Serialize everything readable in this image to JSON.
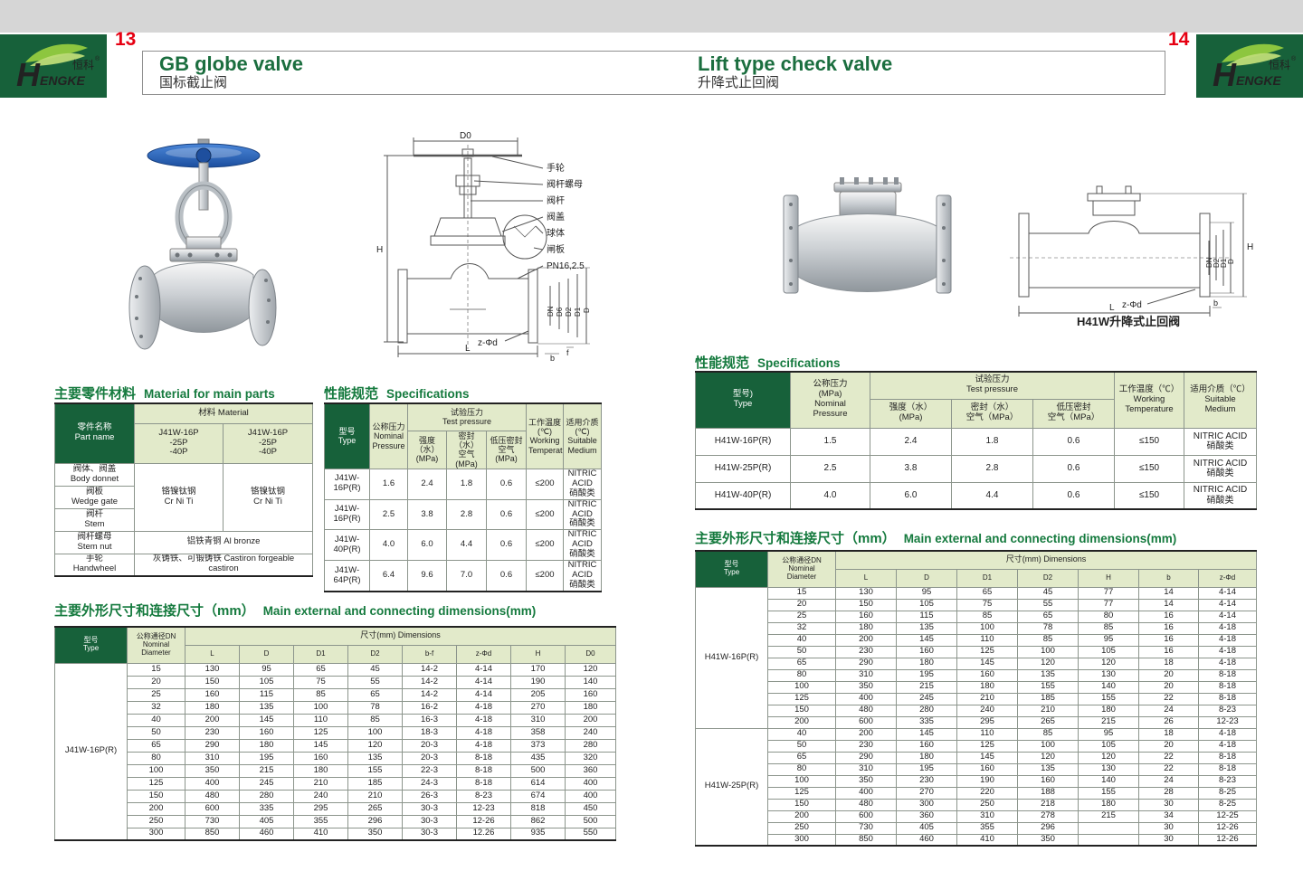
{
  "colors": {
    "brand_green": "#17613A",
    "cell_green": "#E2EACA",
    "accent_red": "#E60012",
    "title_green": "#157A3E",
    "band_gray": "#D6D6D6"
  },
  "header": {
    "page_left_num": "13",
    "page_right_num": "14",
    "left_title_en": "GB globe valve",
    "left_title_zh": "国标截止阀",
    "right_title_en": "Lift type check valve",
    "right_title_zh": "升降式止回阀",
    "logo": {
      "h": "H",
      "rest": "ENGKE",
      "zh": "恒科",
      "reg": "®"
    }
  },
  "left_page": {
    "material_section": {
      "title_zh": "主要零件材料",
      "title_en": "Material for main parts",
      "part_name": "零件名称\nPart name",
      "material_header": "材料 Material",
      "model_col": "J41W-16P\n-25P\n-40P",
      "rows": [
        {
          "label": "阀体、阀盖\nBody donnet"
        },
        {
          "label": "阀板\nWedge gate"
        },
        {
          "label": "阀杆\nStem"
        },
        {
          "label": "阀杆螺母\nStem nut"
        },
        {
          "label": "手轮\nHandwheel"
        }
      ],
      "mat_crniti": "铬镍钛钢\nCr Ni Ti",
      "mat_bronze": "铝铁青铜 Al bronze",
      "mat_castiron": "灰铸铁、可锻铸铁 Castiron forgeable castiron"
    },
    "spec_section": {
      "title_zh": "性能规范",
      "title_en": "Specifications",
      "h_type": "型号\nType",
      "h_nominal": "公称压力\nNominal\nPressure",
      "h_test": "试验压力\nTest pressure",
      "h_strength": "强度（水）\n(MPa)",
      "h_seal": "密封（水）\n空气 (MPa)",
      "h_lowseal": "低压密封\n空气 (MPa)",
      "h_working": "工作温度\n(℃)\nWorking\nTemperature",
      "h_medium": "适用介质\n(℃)\nSuitable\nMedium",
      "rows": [
        [
          "J41W-16P(R)",
          "1.6",
          "2.4",
          "1.8",
          "0.6",
          "≤200",
          "NITRIC ACID\n硝酸类"
        ],
        [
          "J41W-16P(R)",
          "2.5",
          "3.8",
          "2.8",
          "0.6",
          "≤200",
          "NITRIC ACID\n硝酸类"
        ],
        [
          "J41W-40P(R)",
          "4.0",
          "6.0",
          "4.4",
          "0.6",
          "≤200",
          "NITRIC ACID\n硝酸类"
        ],
        [
          "J41W-64P(R)",
          "6.4",
          "9.6",
          "7.0",
          "0.6",
          "≤200",
          "NITRIC ACID\n硝酸类"
        ]
      ]
    },
    "dims_section": {
      "title_zh": "主要外形尺寸和连接尺寸（mm）",
      "title_en": "Main external and connecting dimensions(mm)",
      "h_type": "型号\nType",
      "h_dn": "公称通径DN\nNominal\nDiameter",
      "h_dims": "尺寸(mm) Dimensions",
      "cols": [
        "L",
        "D",
        "D1",
        "D2",
        "b-f",
        "z-Φd",
        "H",
        "D0"
      ],
      "rows": [
        [
          {
            "text": "J41W-16P(R)",
            "rowspan": 14
          },
          "15",
          "130",
          "95",
          "65",
          "45",
          "14-2",
          "4-14",
          "170",
          "120"
        ],
        [
          "20",
          "150",
          "105",
          "75",
          "55",
          "14-2",
          "4-14",
          "190",
          "140"
        ],
        [
          "25",
          "160",
          "115",
          "85",
          "65",
          "14-2",
          "4-14",
          "205",
          "160"
        ],
        [
          "32",
          "180",
          "135",
          "100",
          "78",
          "16-2",
          "4-18",
          "270",
          "180"
        ],
        [
          "40",
          "200",
          "145",
          "110",
          "85",
          "16-3",
          "4-18",
          "310",
          "200"
        ],
        [
          "50",
          "230",
          "160",
          "125",
          "100",
          "18-3",
          "4-18",
          "358",
          "240"
        ],
        [
          "65",
          "290",
          "180",
          "145",
          "120",
          "20-3",
          "4-18",
          "373",
          "280"
        ],
        [
          "80",
          "310",
          "195",
          "160",
          "135",
          "20-3",
          "8-18",
          "435",
          "320"
        ],
        [
          "100",
          "350",
          "215",
          "180",
          "155",
          "22-3",
          "8-18",
          "500",
          "360"
        ],
        [
          "125",
          "400",
          "245",
          "210",
          "185",
          "24-3",
          "8-18",
          "614",
          "400"
        ],
        [
          "150",
          "480",
          "280",
          "240",
          "210",
          "26-3",
          "8-23",
          "674",
          "400"
        ],
        [
          "200",
          "600",
          "335",
          "295",
          "265",
          "30-3",
          "12-23",
          "818",
          "450"
        ],
        [
          "250",
          "730",
          "405",
          "355",
          "296",
          "30-3",
          "12-26",
          "862",
          "500"
        ],
        [
          "300",
          "850",
          "460",
          "410",
          "350",
          "30-3",
          "12.26",
          "935",
          "550"
        ]
      ]
    }
  },
  "right_page": {
    "spec_section": {
      "title_zh": "性能规范",
      "title_en": "Specifications",
      "h_type": "型号)\nType",
      "h_nominal": "公称压力\n(MPa)\nNominal\nPressure",
      "h_test": "试验压力\nTest pressure",
      "h_strength": "强度（水）\n(MPa)",
      "h_seal": "密封（水）\n空气（MPa）",
      "h_lowseal": "低压密封\n空气（MPa）",
      "h_working": "工作温度（℃）\nWorking\nTemperature",
      "h_medium": "适用介质（℃）\nSuitable\nMedium",
      "rows": [
        [
          "H41W-16P(R)",
          "1.5",
          "2.4",
          "1.8",
          "0.6",
          "≤150",
          "NITRIC ACID\n硝酸类"
        ],
        [
          "H41W-25P(R)",
          "2.5",
          "3.8",
          "2.8",
          "0.6",
          "≤150",
          "NITRIC ACID\n硝酸类"
        ],
        [
          "H41W-40P(R)",
          "4.0",
          "6.0",
          "4.4",
          "0.6",
          "≤150",
          "NITRIC ACID\n硝酸类"
        ]
      ]
    },
    "dims_section": {
      "title_zh": "主要外形尺寸和连接尺寸（mm）",
      "title_en": "Main external and connecting dimensions(mm)",
      "h_type": "型号\nType",
      "h_dn": "公称通径DN\nNominal\nDiameter",
      "h_dims": "尺寸(mm) Dimensions",
      "cols": [
        "L",
        "D",
        "D1",
        "D2",
        "H",
        "b",
        "z-Φd"
      ],
      "rows": [
        [
          {
            "text": "H41W-16P(R)",
            "rowspan": 12
          },
          "15",
          "130",
          "95",
          "65",
          "45",
          "77",
          "14",
          "4-14"
        ],
        [
          "20",
          "150",
          "105",
          "75",
          "55",
          "77",
          "14",
          "4-14"
        ],
        [
          "25",
          "160",
          "115",
          "85",
          "65",
          "80",
          "16",
          "4-14"
        ],
        [
          "32",
          "180",
          "135",
          "100",
          "78",
          "85",
          "16",
          "4-18"
        ],
        [
          "40",
          "200",
          "145",
          "110",
          "85",
          "95",
          "16",
          "4-18"
        ],
        [
          "50",
          "230",
          "160",
          "125",
          "100",
          "105",
          "16",
          "4-18"
        ],
        [
          "65",
          "290",
          "180",
          "145",
          "120",
          "120",
          "18",
          "4-18"
        ],
        [
          "80",
          "310",
          "195",
          "160",
          "135",
          "130",
          "20",
          "8-18"
        ],
        [
          "100",
          "350",
          "215",
          "180",
          "155",
          "140",
          "20",
          "8-18"
        ],
        [
          "125",
          "400",
          "245",
          "210",
          "185",
          "155",
          "22",
          "8-18"
        ],
        [
          "150",
          "480",
          "280",
          "240",
          "210",
          "180",
          "24",
          "8-23"
        ],
        [
          "200",
          "600",
          "335",
          "295",
          "265",
          "215",
          "26",
          "12-23"
        ],
        [
          {
            "text": "H41W-25P(R)",
            "rowspan": 10
          },
          "40",
          "200",
          "145",
          "110",
          "85",
          "95",
          "18",
          "4-18"
        ],
        [
          "50",
          "230",
          "160",
          "125",
          "100",
          "105",
          "20",
          "4-18"
        ],
        [
          "65",
          "290",
          "180",
          "145",
          "120",
          "120",
          "22",
          "8-18"
        ],
        [
          "80",
          "310",
          "195",
          "160",
          "135",
          "130",
          "22",
          "8-18"
        ],
        [
          "100",
          "350",
          "230",
          "190",
          "160",
          "140",
          "24",
          "8-23"
        ],
        [
          "125",
          "400",
          "270",
          "220",
          "188",
          "155",
          "28",
          "8-25"
        ],
        [
          "150",
          "480",
          "300",
          "250",
          "218",
          "180",
          "30",
          "8-25"
        ],
        [
          "200",
          "600",
          "360",
          "310",
          "278",
          "215",
          "34",
          "12-25"
        ],
        [
          "250",
          "730",
          "405",
          "355",
          "296",
          "",
          "30",
          "12-26"
        ],
        [
          "300",
          "850",
          "460",
          "410",
          "350",
          "",
          "30",
          "12-26"
        ]
      ]
    }
  },
  "diagrams": {
    "left": {
      "d0": "D0",
      "h": "H",
      "l": "L",
      "b": "b",
      "f": "f",
      "zphid": "z-Φd",
      "pn": "PN16,2.5",
      "parts": [
        "手轮",
        "阀杆螺母",
        "阀杆",
        "阀盖",
        "球体",
        "闸板"
      ],
      "dim_stack": [
        "DN",
        "D6",
        "D2",
        "D1",
        "D"
      ]
    },
    "right": {
      "h": "H",
      "l": "L",
      "b": "b",
      "zphid": "z-Φd",
      "dim_stack": [
        "DN",
        "D2",
        "D1",
        "D"
      ],
      "caption": "H41W升降式止回阀"
    }
  }
}
